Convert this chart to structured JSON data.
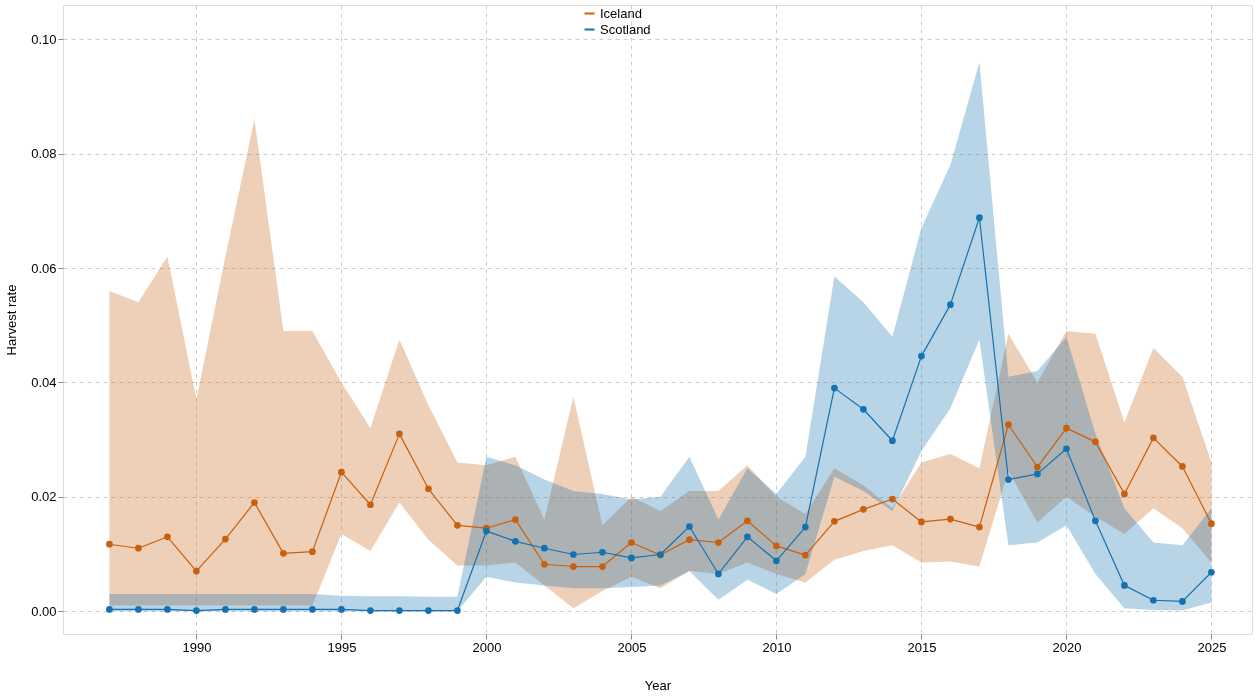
{
  "chart_data": {
    "type": "line",
    "xlabel": "Year",
    "ylabel": "Harvest rate",
    "x": [
      1987,
      1988,
      1989,
      1990,
      1991,
      1992,
      1993,
      1994,
      1995,
      1996,
      1997,
      1998,
      1999,
      2000,
      2001,
      2002,
      2003,
      2004,
      2005,
      2006,
      2007,
      2008,
      2009,
      2010,
      2011,
      2012,
      2013,
      2014,
      2015,
      2016,
      2017,
      2018,
      2019,
      2020,
      2021,
      2022,
      2023,
      2024,
      2025
    ],
    "series": [
      {
        "name": "Iceland",
        "color": "#c8600f",
        "values": [
          0.0117,
          0.011,
          0.013,
          0.007,
          0.0126,
          0.019,
          0.0101,
          0.0104,
          0.0243,
          0.0186,
          0.031,
          0.0214,
          0.015,
          0.0145,
          0.016,
          0.0082,
          0.0078,
          0.0078,
          0.012,
          0.0098,
          0.0125,
          0.012,
          0.0158,
          0.0114,
          0.0098,
          0.0157,
          0.0178,
          0.0196,
          0.0156,
          0.0161,
          0.0147,
          0.0326,
          0.0252,
          0.032,
          0.0296,
          0.0205,
          0.0303,
          0.0253,
          0.0153
        ],
        "upper": [
          0.056,
          0.054,
          0.062,
          0.037,
          0.062,
          0.086,
          0.049,
          0.049,
          0.04,
          0.032,
          0.0475,
          0.036,
          0.026,
          0.0255,
          0.027,
          0.016,
          0.0375,
          0.015,
          0.02,
          0.0175,
          0.021,
          0.021,
          0.0255,
          0.02,
          0.017,
          0.025,
          0.022,
          0.018,
          0.026,
          0.0275,
          0.025,
          0.0485,
          0.04,
          0.049,
          0.0485,
          0.033,
          0.046,
          0.041,
          0.026
        ],
        "lower": [
          0.001,
          0.001,
          0.001,
          0.001,
          0.001,
          0.001,
          0.001,
          0.001,
          0.0135,
          0.0105,
          0.019,
          0.0125,
          0.008,
          0.008,
          0.0085,
          0.0045,
          0.0005,
          0.0035,
          0.006,
          0.004,
          0.007,
          0.0065,
          0.0085,
          0.0065,
          0.005,
          0.009,
          0.0105,
          0.0115,
          0.0085,
          0.0087,
          0.0078,
          0.0245,
          0.0155,
          0.02,
          0.0165,
          0.0135,
          0.018,
          0.0145,
          0.0085
        ]
      },
      {
        "name": "Scotland",
        "color": "#1572b0",
        "values": [
          0.0003,
          0.0003,
          0.0003,
          0.0001,
          0.0003,
          0.0003,
          0.0003,
          0.0003,
          0.0003,
          0.0001,
          0.0001,
          0.0001,
          0.0001,
          0.014,
          0.0122,
          0.011,
          0.0099,
          0.0103,
          0.0093,
          0.0099,
          0.0148,
          0.0065,
          0.013,
          0.0088,
          0.0147,
          0.039,
          0.0353,
          0.0298,
          0.0446,
          0.0536,
          0.0688,
          0.023,
          0.024,
          0.0284,
          0.0158,
          0.0045,
          0.0019,
          0.0017,
          0.0068
        ],
        "upper": [
          0.003,
          0.003,
          0.003,
          0.003,
          0.003,
          0.003,
          0.003,
          0.003,
          0.0027,
          0.0026,
          0.0026,
          0.0025,
          0.0025,
          0.027,
          0.0255,
          0.023,
          0.021,
          0.0205,
          0.0195,
          0.02,
          0.027,
          0.016,
          0.025,
          0.0205,
          0.027,
          0.0585,
          0.054,
          0.048,
          0.067,
          0.078,
          0.096,
          0.041,
          0.042,
          0.048,
          0.031,
          0.018,
          0.012,
          0.0115,
          0.018
        ],
        "lower": [
          0,
          0,
          0,
          0,
          0,
          0,
          0,
          0,
          0,
          0,
          0,
          0,
          0,
          0.006,
          0.005,
          0.0045,
          0.004,
          0.004,
          0.0042,
          0.0045,
          0.007,
          0.002,
          0.0055,
          0.003,
          0.0065,
          0.0235,
          0.021,
          0.0175,
          0.028,
          0.0355,
          0.0475,
          0.0115,
          0.012,
          0.015,
          0.0065,
          0.0005,
          0.0002,
          0.0001,
          0.0015
        ]
      }
    ],
    "xlim": [
      1985.4,
      2026.4
    ],
    "xticks": [
      1990,
      1995,
      2000,
      2005,
      2010,
      2015,
      2020,
      2025
    ],
    "ylim": [
      -0.004,
      0.106
    ],
    "yticks": [
      {
        "value": 0,
        "label": "0.00"
      },
      {
        "value": 0.02,
        "label": "0.02"
      },
      {
        "value": 0.04,
        "label": "0.04"
      },
      {
        "value": 0.06,
        "label": "0.06"
      },
      {
        "value": 0.08,
        "label": "0.08"
      },
      {
        "value": 0.1,
        "label": "0.10"
      }
    ],
    "grid": true,
    "legend": "top",
    "marker": "circle",
    "line_style": "solid"
  }
}
